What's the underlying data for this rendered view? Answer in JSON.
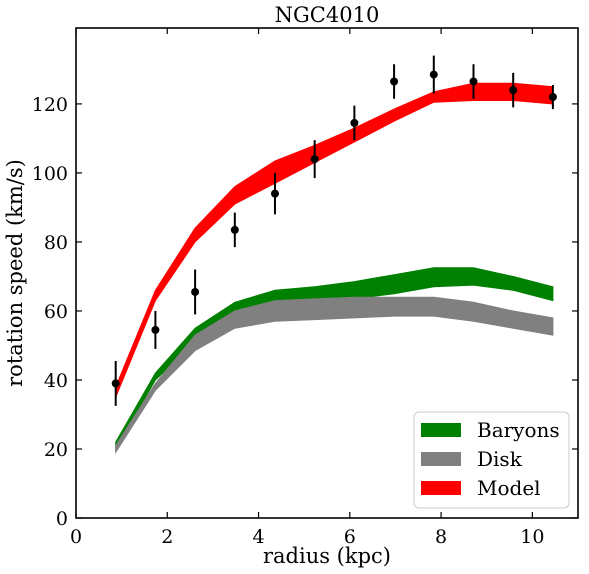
{
  "chart_data": {
    "type": "area",
    "title": "NGC4010",
    "xlabel": "radius (kpc)",
    "ylabel": "rotation speed (km/s)",
    "xlim": [
      0,
      11
    ],
    "ylim": [
      0,
      142
    ],
    "xticks": [
      0,
      2,
      4,
      6,
      8,
      10
    ],
    "yticks": [
      0,
      20,
      40,
      60,
      80,
      100,
      120
    ],
    "grid": false,
    "legend_position": "lower-right",
    "x": [
      0.87,
      1.74,
      2.61,
      3.48,
      4.36,
      5.23,
      6.1,
      6.97,
      7.84,
      8.71,
      9.58,
      10.45
    ],
    "series": [
      {
        "name": "Baryons",
        "kind": "band",
        "color": "#008000",
        "lower": [
          20,
          40,
          51,
          57,
          60.5,
          62,
          63.5,
          65,
          67,
          67.5,
          66,
          63
        ],
        "upper": [
          22,
          42,
          55,
          62.5,
          66,
          67,
          68.5,
          70.5,
          72.5,
          72.5,
          70,
          67
        ]
      },
      {
        "name": "Disk",
        "kind": "band",
        "color": "#808080",
        "lower": [
          19,
          37,
          48.5,
          55,
          57,
          57.5,
          58,
          58.5,
          58.5,
          57,
          55,
          53
        ],
        "upper": [
          21,
          39,
          53,
          60,
          63,
          63.5,
          64,
          64,
          64,
          62.5,
          60,
          58
        ]
      },
      {
        "name": "Model",
        "kind": "band",
        "color": "#ff0000",
        "lower": [
          35,
          63,
          80,
          91,
          97,
          103,
          109,
          115,
          120.5,
          121,
          121,
          120
        ],
        "upper": [
          38,
          66,
          84,
          96,
          103.5,
          108,
          113,
          118.5,
          123.5,
          126,
          126,
          125
        ]
      },
      {
        "name": "",
        "kind": "errorbar",
        "color": "#000000",
        "values": [
          39,
          54.5,
          65.5,
          83.5,
          94,
          104,
          114.5,
          126.5,
          128.5,
          126.5,
          124,
          122
        ],
        "errors": [
          6.5,
          5.5,
          6.5,
          5,
          6,
          5.5,
          5,
          5,
          5.5,
          5,
          5,
          3.5
        ]
      }
    ],
    "legend": [
      "Baryons",
      "Disk",
      "Model"
    ]
  }
}
